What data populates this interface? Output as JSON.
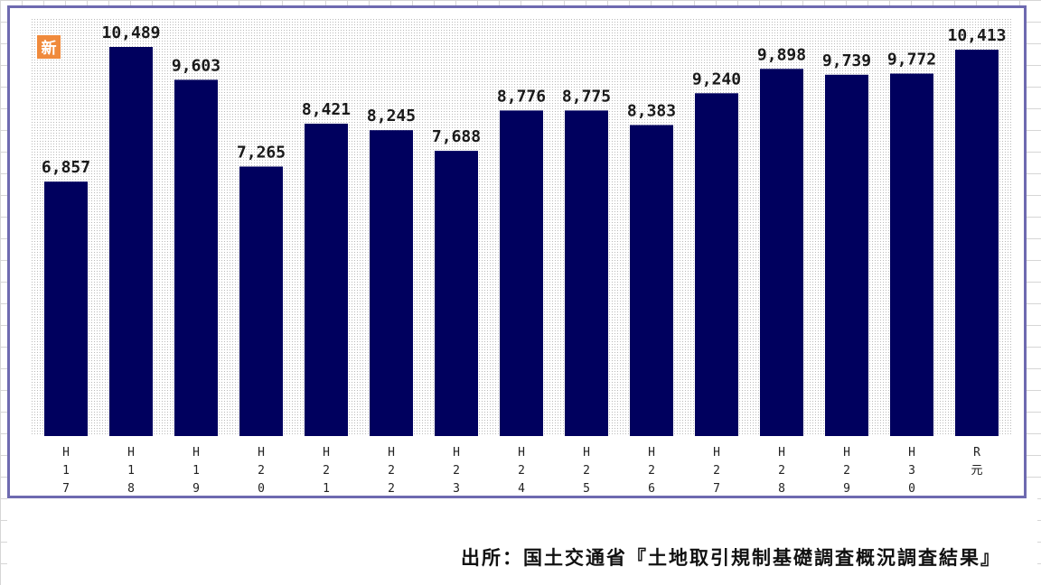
{
  "badge": {
    "text": "新"
  },
  "source": {
    "text": "出所：国土交通省『土地取引規制基礎調査概況調査結果』"
  },
  "colors": {
    "bar": "#00005e",
    "frame": "#6e6ab0",
    "badge": "#f08a3c",
    "dots": "#b9b9b9"
  },
  "chart_data": {
    "type": "bar",
    "categories": [
      "H\n1\n7",
      "H\n1\n8",
      "H\n1\n9",
      "H\n2\n0",
      "H\n2\n1",
      "H\n2\n2",
      "H\n2\n3",
      "H\n2\n4",
      "H\n2\n5",
      "H\n2\n6",
      "H\n2\n7",
      "H\n2\n8",
      "H\n2\n9",
      "H\n3\n0",
      "R\n元"
    ],
    "values": [
      6857,
      10489,
      9603,
      7265,
      8421,
      8245,
      7688,
      8776,
      8775,
      8383,
      9240,
      9898,
      9739,
      9772,
      10413
    ],
    "data_labels": [
      "6,857",
      "10,489",
      "9,603",
      "7,265",
      "8,421",
      "8,245",
      "7,688",
      "8,776",
      "8,775",
      "8,383",
      "9,240",
      "9,898",
      "9,739",
      "9,772",
      "10,413"
    ],
    "title": "",
    "xlabel": "",
    "ylabel": "",
    "ylim": [
      0,
      11000
    ],
    "grid": false,
    "legend": "none"
  }
}
